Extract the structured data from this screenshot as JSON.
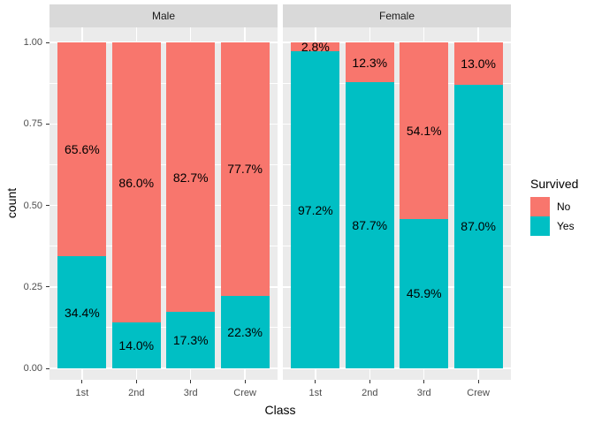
{
  "chart_data": {
    "type": "bar",
    "stacked": true,
    "normalized": true,
    "title": "",
    "xlabel": "Class",
    "ylabel": "count",
    "categories": [
      "1st",
      "2nd",
      "3rd",
      "Crew"
    ],
    "facets": [
      {
        "label": "Male",
        "series": [
          {
            "name": "No",
            "values": [
              0.656,
              0.86,
              0.827,
              0.777
            ],
            "labels": [
              "65.6%",
              "86.0%",
              "82.7%",
              "77.7%"
            ]
          },
          {
            "name": "Yes",
            "values": [
              0.344,
              0.14,
              0.173,
              0.223
            ],
            "labels": [
              "34.4%",
              "14.0%",
              "17.3%",
              "22.3%"
            ]
          }
        ]
      },
      {
        "label": "Female",
        "series": [
          {
            "name": "No",
            "values": [
              0.028,
              0.123,
              0.541,
              0.13
            ],
            "labels": [
              "2.8%",
              "12.3%",
              "54.1%",
              "13.0%"
            ]
          },
          {
            "name": "Yes",
            "values": [
              0.972,
              0.877,
              0.459,
              0.87
            ],
            "labels": [
              "97.2%",
              "87.7%",
              "45.9%",
              "87.0%"
            ]
          }
        ]
      }
    ],
    "ylim": [
      0,
      1
    ],
    "y_major_ticks": [
      0,
      0.25,
      0.5,
      0.75,
      1.0
    ],
    "y_tick_labels": [
      "0.00",
      "0.25",
      "0.50",
      "0.75",
      "1.00"
    ],
    "y_minor_ticks": [
      0.125,
      0.375,
      0.625,
      0.875
    ],
    "grid": true,
    "legend": {
      "title": "Survived",
      "position": "right",
      "entries": [
        {
          "label": "No",
          "color": "#F8766D"
        },
        {
          "label": "Yes",
          "color": "#00BFC4"
        }
      ]
    },
    "colors": {
      "No": "#F8766D",
      "Yes": "#00BFC4"
    },
    "panel_bg": "#EBEBEB",
    "strip_bg": "#D9D9D9",
    "grid_color": "#FFFFFF",
    "bar_width_fraction": 0.9
  }
}
